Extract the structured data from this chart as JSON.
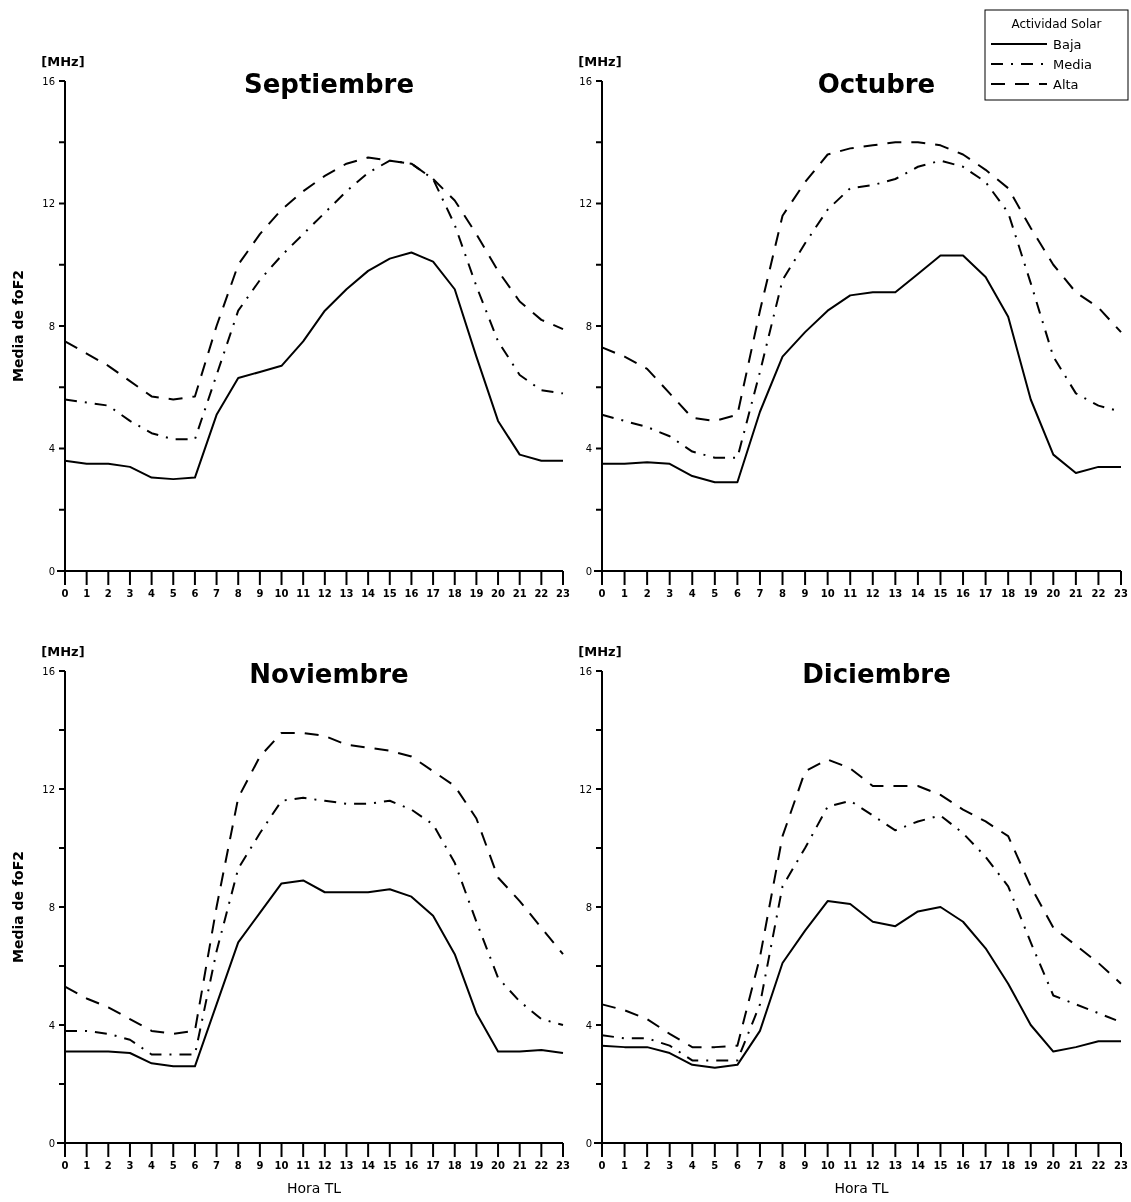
{
  "chart_data": [
    {
      "type": "line",
      "title": "Septiembre",
      "ylabel": "Media de  foF2",
      "annotations": [
        "[MHz]"
      ],
      "x": [
        0,
        1,
        2,
        3,
        4,
        5,
        6,
        7,
        8,
        9,
        10,
        11,
        12,
        13,
        14,
        15,
        16,
        17,
        18,
        19,
        20,
        21,
        22,
        23
      ],
      "xlim": [
        0,
        23
      ],
      "xticks": [
        0,
        1,
        2,
        3,
        4,
        5,
        6,
        7,
        8,
        9,
        10,
        11,
        12,
        13,
        14,
        15,
        16,
        17,
        18,
        19,
        20,
        21,
        22,
        23
      ],
      "ylim": [
        0,
        16
      ],
      "yticks": [
        0,
        {
          "value": 2,
          "label": null
        },
        4,
        {
          "value": 6,
          "label": null
        },
        8,
        {
          "value": 10,
          "label": null
        },
        12,
        {
          "value": 14,
          "label": null
        },
        16
      ],
      "grid": false,
      "legend": false,
      "marker": "none",
      "series": [
        {
          "color": "#000000",
          "line_style": "solid",
          "values": [
            3.6,
            3.5,
            3.5,
            3.4,
            3.05,
            3.0,
            3.05,
            5.1,
            6.3,
            6.5,
            6.7,
            7.5,
            8.5,
            9.2,
            9.8,
            10.2,
            10.4,
            10.1,
            9.2,
            7.0,
            4.9,
            3.8,
            3.6,
            3.6
          ]
        },
        {
          "color": "#000000",
          "line_style": "dashdot",
          "values": [
            5.6,
            5.5,
            5.4,
            4.9,
            4.5,
            4.3,
            4.3,
            6.4,
            8.5,
            9.5,
            10.3,
            11.0,
            11.7,
            12.4,
            13.0,
            13.4,
            13.3,
            12.8,
            11.3,
            9.3,
            7.5,
            6.4,
            5.9,
            5.8
          ]
        },
        {
          "color": "#000000",
          "line_style": "dashed",
          "values": [
            7.5,
            7.1,
            6.7,
            6.2,
            5.7,
            5.6,
            5.7,
            8.0,
            10.0,
            11.0,
            11.8,
            12.4,
            12.9,
            13.3,
            13.5,
            13.4,
            13.3,
            12.8,
            12.1,
            11.0,
            9.8,
            8.8,
            8.2,
            7.9
          ]
        }
      ]
    },
    {
      "type": "line",
      "title": "Octubre",
      "legend_title": "Actividad Solar",
      "annotations": [
        "[MHz]"
      ],
      "x": [
        0,
        1,
        2,
        3,
        4,
        5,
        6,
        7,
        8,
        9,
        10,
        11,
        12,
        13,
        14,
        15,
        16,
        17,
        18,
        19,
        20,
        21,
        22,
        23
      ],
      "xlim": [
        0,
        23
      ],
      "xticks": [
        0,
        1,
        2,
        3,
        4,
        5,
        6,
        7,
        8,
        9,
        10,
        11,
        12,
        13,
        14,
        15,
        16,
        17,
        18,
        19,
        20,
        21,
        22,
        23
      ],
      "ylim": [
        0,
        16
      ],
      "yticks": [
        0,
        {
          "value": 2,
          "label": null
        },
        4,
        {
          "value": 6,
          "label": null
        },
        8,
        {
          "value": 10,
          "label": null
        },
        12,
        {
          "value": 14,
          "label": null
        },
        16
      ],
      "grid": false,
      "legend": "top right",
      "marker": "none",
      "series": [
        {
          "name": "Baja",
          "color": "#000000",
          "line_style": "solid",
          "values": [
            3.5,
            3.5,
            3.55,
            3.5,
            3.1,
            2.9,
            2.9,
            5.2,
            7.0,
            7.8,
            8.5,
            9.0,
            9.1,
            9.1,
            9.7,
            10.3,
            10.3,
            9.6,
            8.3,
            5.6,
            3.8,
            3.2,
            3.4,
            3.4
          ]
        },
        {
          "name": "Media",
          "color": "#000000",
          "line_style": "dashdot",
          "values": [
            5.1,
            4.9,
            4.7,
            4.4,
            3.9,
            3.7,
            3.7,
            6.5,
            9.5,
            10.7,
            11.8,
            12.5,
            12.6,
            12.8,
            13.2,
            13.4,
            13.2,
            12.7,
            11.7,
            9.4,
            7.0,
            5.8,
            5.4,
            5.2
          ]
        },
        {
          "name": "Alta",
          "color": "#000000",
          "line_style": "dashed",
          "values": [
            7.3,
            7.0,
            6.6,
            5.8,
            5.0,
            4.9,
            5.1,
            8.5,
            11.6,
            12.7,
            13.6,
            13.8,
            13.9,
            14.0,
            14.0,
            13.9,
            13.6,
            13.1,
            12.5,
            11.2,
            10.0,
            9.1,
            8.6,
            7.8
          ]
        }
      ]
    },
    {
      "type": "line",
      "title": "Noviembre",
      "xlabel": "Hora TL",
      "ylabel": "Media de  foF2",
      "annotations": [
        "[MHz]"
      ],
      "x": [
        0,
        1,
        2,
        3,
        4,
        5,
        6,
        7,
        8,
        9,
        10,
        11,
        12,
        13,
        14,
        15,
        16,
        17,
        18,
        19,
        20,
        21,
        22,
        23
      ],
      "xlim": [
        0,
        23
      ],
      "xticks": [
        0,
        1,
        2,
        3,
        4,
        5,
        6,
        7,
        8,
        9,
        10,
        11,
        12,
        13,
        14,
        15,
        16,
        17,
        18,
        19,
        20,
        21,
        22,
        23
      ],
      "ylim": [
        0,
        16
      ],
      "yticks": [
        0,
        {
          "value": 2,
          "label": null
        },
        4,
        {
          "value": 6,
          "label": null
        },
        8,
        {
          "value": 10,
          "label": null
        },
        12,
        {
          "value": 14,
          "label": null
        },
        16
      ],
      "grid": false,
      "legend": false,
      "marker": "none",
      "series": [
        {
          "color": "#000000",
          "line_style": "solid",
          "values": [
            3.1,
            3.1,
            3.1,
            3.05,
            2.7,
            2.6,
            2.6,
            4.7,
            6.8,
            7.8,
            8.8,
            8.9,
            8.5,
            8.5,
            8.5,
            8.6,
            8.35,
            7.7,
            6.4,
            4.4,
            3.1,
            3.1,
            3.15,
            3.05
          ]
        },
        {
          "color": "#000000",
          "line_style": "dashdot",
          "values": [
            3.8,
            3.8,
            3.7,
            3.5,
            3.0,
            3.0,
            3.0,
            6.5,
            9.3,
            10.5,
            11.6,
            11.7,
            11.6,
            11.5,
            11.5,
            11.6,
            11.3,
            10.8,
            9.5,
            7.5,
            5.6,
            4.8,
            4.2,
            4.0
          ]
        },
        {
          "color": "#000000",
          "line_style": "dashed",
          "values": [
            5.3,
            4.9,
            4.6,
            4.2,
            3.8,
            3.7,
            3.8,
            8.0,
            11.7,
            13.1,
            13.9,
            13.9,
            13.8,
            13.5,
            13.4,
            13.3,
            13.1,
            12.6,
            12.1,
            11.0,
            9.0,
            8.2,
            7.3,
            6.4
          ]
        }
      ]
    },
    {
      "type": "line",
      "title": "Diciembre",
      "xlabel": "Hora TL",
      "annotations": [
        "[MHz]"
      ],
      "x": [
        0,
        1,
        2,
        3,
        4,
        5,
        6,
        7,
        8,
        9,
        10,
        11,
        12,
        13,
        14,
        15,
        16,
        17,
        18,
        19,
        20,
        21,
        22,
        23
      ],
      "xlim": [
        0,
        23
      ],
      "xticks": [
        0,
        1,
        2,
        3,
        4,
        5,
        6,
        7,
        8,
        9,
        10,
        11,
        12,
        13,
        14,
        15,
        16,
        17,
        18,
        19,
        20,
        21,
        22,
        23
      ],
      "ylim": [
        0,
        16
      ],
      "yticks": [
        0,
        {
          "value": 2,
          "label": null
        },
        4,
        {
          "value": 6,
          "label": null
        },
        8,
        {
          "value": 10,
          "label": null
        },
        12,
        {
          "value": 14,
          "label": null
        },
        16
      ],
      "grid": false,
      "legend": false,
      "marker": "none",
      "series": [
        {
          "color": "#000000",
          "line_style": "solid",
          "values": [
            3.3,
            3.25,
            3.25,
            3.05,
            2.65,
            2.55,
            2.65,
            3.8,
            6.1,
            7.2,
            8.2,
            8.1,
            7.5,
            7.35,
            7.85,
            8.0,
            7.5,
            6.6,
            5.4,
            4.0,
            3.1,
            3.25,
            3.45,
            3.45
          ]
        },
        {
          "color": "#000000",
          "line_style": "dashdot",
          "values": [
            3.65,
            3.55,
            3.55,
            3.3,
            2.8,
            2.8,
            2.8,
            4.7,
            8.7,
            10.0,
            11.4,
            11.6,
            11.1,
            10.6,
            10.9,
            11.1,
            10.5,
            9.7,
            8.7,
            6.8,
            5.0,
            4.7,
            4.4,
            4.1
          ]
        },
        {
          "color": "#000000",
          "line_style": "dashed",
          "values": [
            4.7,
            4.5,
            4.2,
            3.7,
            3.25,
            3.25,
            3.3,
            6.3,
            10.4,
            12.6,
            13.0,
            12.7,
            12.1,
            12.1,
            12.1,
            11.8,
            11.3,
            10.9,
            10.4,
            8.7,
            7.3,
            6.7,
            6.1,
            5.4
          ]
        }
      ]
    }
  ]
}
